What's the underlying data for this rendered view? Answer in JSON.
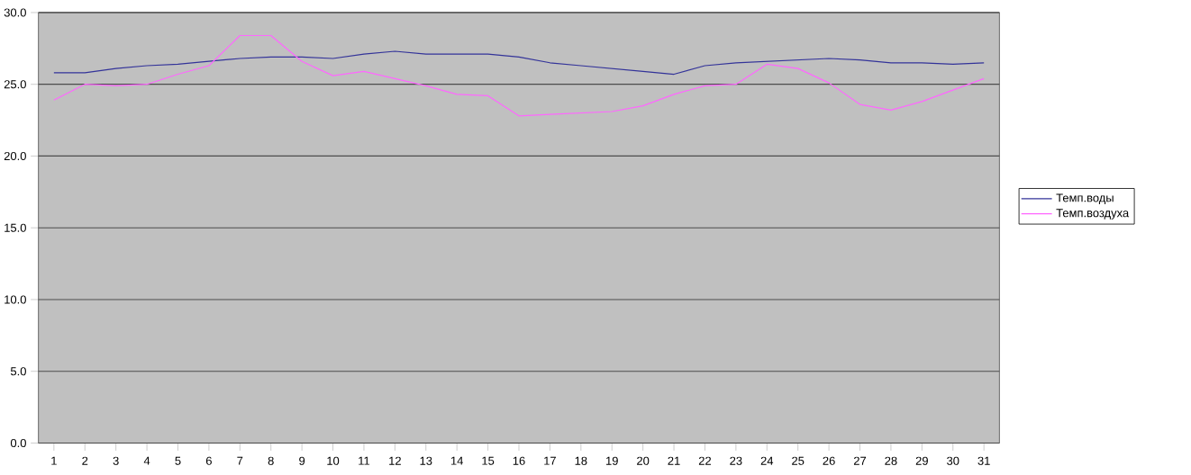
{
  "chart_data": {
    "type": "line",
    "categories": [
      "1",
      "2",
      "3",
      "4",
      "5",
      "6",
      "7",
      "8",
      "9",
      "10",
      "11",
      "12",
      "13",
      "14",
      "15",
      "16",
      "17",
      "18",
      "19",
      "20",
      "21",
      "22",
      "23",
      "24",
      "25",
      "26",
      "27",
      "28",
      "29",
      "30",
      "31"
    ],
    "series": [
      {
        "name": "Темп.воды",
        "color": "#333399",
        "values": [
          25.8,
          25.8,
          26.1,
          26.3,
          26.4,
          26.6,
          26.8,
          26.9,
          26.9,
          26.8,
          27.1,
          27.3,
          27.1,
          27.1,
          27.1,
          26.9,
          26.5,
          26.3,
          26.1,
          25.9,
          25.7,
          26.3,
          26.5,
          26.6,
          26.7,
          26.8,
          26.7,
          26.5,
          26.5,
          26.4,
          26.5
        ]
      },
      {
        "name": "Темп.воздуха",
        "color": "#ff66ff",
        "values": [
          23.9,
          25.0,
          24.9,
          25.0,
          25.7,
          26.3,
          28.4,
          28.4,
          26.6,
          25.6,
          25.9,
          25.4,
          24.9,
          24.3,
          24.2,
          22.8,
          22.9,
          23.0,
          23.1,
          23.5,
          24.3,
          24.9,
          25.0,
          26.4,
          26.1,
          25.1,
          23.6,
          23.2,
          23.8,
          24.6,
          25.4
        ]
      }
    ],
    "ylim": [
      0,
      30
    ],
    "yticks": [
      {
        "value": 0,
        "label": "0.0"
      },
      {
        "value": 5,
        "label": "5.0"
      },
      {
        "value": 10,
        "label": "10.0"
      },
      {
        "value": 15,
        "label": "15.0"
      },
      {
        "value": 20,
        "label": "20.0"
      },
      {
        "value": 25,
        "label": "25.0"
      },
      {
        "value": 30,
        "label": "30.0"
      }
    ],
    "grid": "y",
    "legend": "right",
    "marker": "none",
    "line_style": "solid"
  }
}
